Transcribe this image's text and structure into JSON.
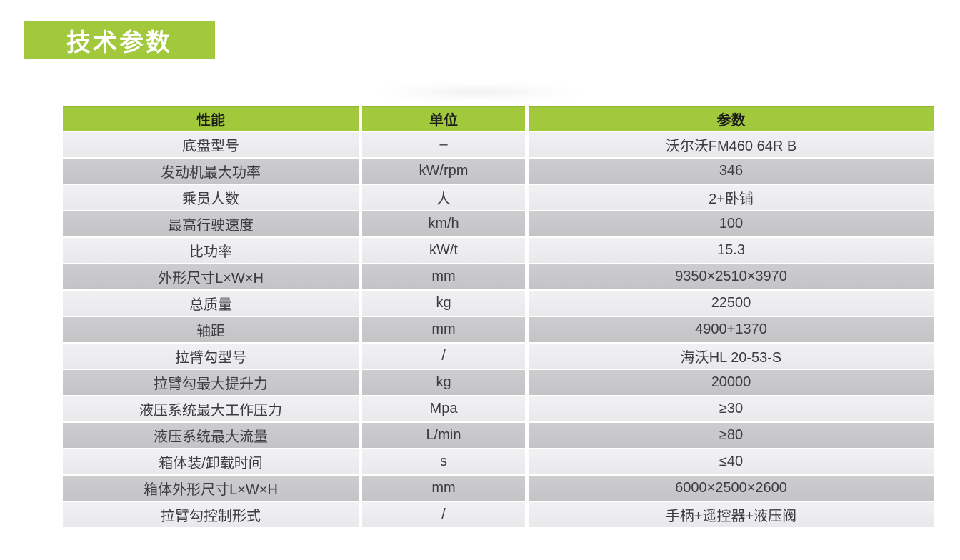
{
  "page": {
    "title_badge": "技术参数"
  },
  "colors": {
    "accent_green": "#a2c93c",
    "row_light": "#ededef",
    "row_dark": "#c8c8ca",
    "header_text": "#1d1d1b",
    "cell_text": "#3c3c3e",
    "badge_text": "#ffffff"
  },
  "table": {
    "headers": [
      "性能",
      "单位",
      "参数"
    ],
    "rows": [
      {
        "name": "底盘型号",
        "unit": "–",
        "value": "沃尔沃FM460 64R B"
      },
      {
        "name": "发动机最大功率",
        "unit": "kW/rpm",
        "value": "346"
      },
      {
        "name": "乘员人数",
        "unit": "人",
        "value": "2+卧铺"
      },
      {
        "name": "最高行驶速度",
        "unit": "km/h",
        "value": "100"
      },
      {
        "name": "比功率",
        "unit": "kW/t",
        "value": "15.3"
      },
      {
        "name": "外形尺寸L×W×H",
        "unit": "mm",
        "value": "9350×2510×3970"
      },
      {
        "name": "总质量",
        "unit": "kg",
        "value": "22500"
      },
      {
        "name": "轴距",
        "unit": "mm",
        "value": "4900+1370"
      },
      {
        "name": "拉臂勾型号",
        "unit": "/",
        "value": "海沃HL 20-53-S"
      },
      {
        "name": "拉臂勾最大提升力",
        "unit": "kg",
        "value": "20000"
      },
      {
        "name": "液压系统最大工作压力",
        "unit": "Mpa",
        "value": "≥30"
      },
      {
        "name": "液压系统最大流量",
        "unit": "L/min",
        "value": "≥80"
      },
      {
        "name": "箱体装/卸载时间",
        "unit": "s",
        "value": "≤40"
      },
      {
        "name": "箱体外形尺寸L×W×H",
        "unit": "mm",
        "value": "6000×2500×2600"
      },
      {
        "name": "拉臂勾控制形式",
        "unit": "/",
        "value": "手柄+遥控器+液压阀"
      }
    ]
  }
}
